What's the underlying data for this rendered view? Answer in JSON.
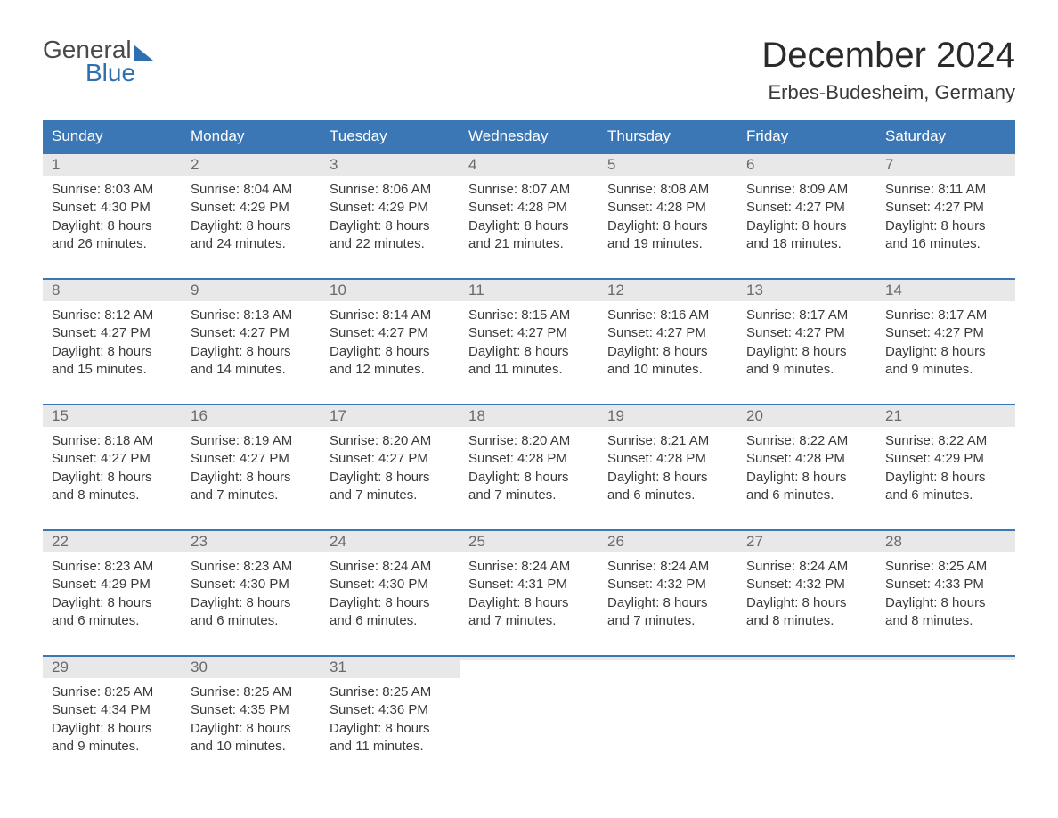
{
  "logo": {
    "text1": "General",
    "text2": "Blue"
  },
  "title": "December 2024",
  "location": "Erbes-Budesheim, Germany",
  "colors": {
    "header_bg": "#3b76b5",
    "header_text": "#ffffff",
    "daynum_bg": "#e8e8e8",
    "daynum_text": "#6a6a6a",
    "body_text": "#3a3a3a",
    "accent": "#2d6fb0",
    "week_border": "#3b76b5",
    "background": "#ffffff"
  },
  "fonts": {
    "title_size": 40,
    "location_size": 22,
    "header_size": 17,
    "daynum_size": 17,
    "body_size": 15
  },
  "day_names": [
    "Sunday",
    "Monday",
    "Tuesday",
    "Wednesday",
    "Thursday",
    "Friday",
    "Saturday"
  ],
  "weeks": [
    [
      {
        "n": "1",
        "sr": "8:03 AM",
        "ss": "4:30 PM",
        "dl": "8 hours and 26 minutes."
      },
      {
        "n": "2",
        "sr": "8:04 AM",
        "ss": "4:29 PM",
        "dl": "8 hours and 24 minutes."
      },
      {
        "n": "3",
        "sr": "8:06 AM",
        "ss": "4:29 PM",
        "dl": "8 hours and 22 minutes."
      },
      {
        "n": "4",
        "sr": "8:07 AM",
        "ss": "4:28 PM",
        "dl": "8 hours and 21 minutes."
      },
      {
        "n": "5",
        "sr": "8:08 AM",
        "ss": "4:28 PM",
        "dl": "8 hours and 19 minutes."
      },
      {
        "n": "6",
        "sr": "8:09 AM",
        "ss": "4:27 PM",
        "dl": "8 hours and 18 minutes."
      },
      {
        "n": "7",
        "sr": "8:11 AM",
        "ss": "4:27 PM",
        "dl": "8 hours and 16 minutes."
      }
    ],
    [
      {
        "n": "8",
        "sr": "8:12 AM",
        "ss": "4:27 PM",
        "dl": "8 hours and 15 minutes."
      },
      {
        "n": "9",
        "sr": "8:13 AM",
        "ss": "4:27 PM",
        "dl": "8 hours and 14 minutes."
      },
      {
        "n": "10",
        "sr": "8:14 AM",
        "ss": "4:27 PM",
        "dl": "8 hours and 12 minutes."
      },
      {
        "n": "11",
        "sr": "8:15 AM",
        "ss": "4:27 PM",
        "dl": "8 hours and 11 minutes."
      },
      {
        "n": "12",
        "sr": "8:16 AM",
        "ss": "4:27 PM",
        "dl": "8 hours and 10 minutes."
      },
      {
        "n": "13",
        "sr": "8:17 AM",
        "ss": "4:27 PM",
        "dl": "8 hours and 9 minutes."
      },
      {
        "n": "14",
        "sr": "8:17 AM",
        "ss": "4:27 PM",
        "dl": "8 hours and 9 minutes."
      }
    ],
    [
      {
        "n": "15",
        "sr": "8:18 AM",
        "ss": "4:27 PM",
        "dl": "8 hours and 8 minutes."
      },
      {
        "n": "16",
        "sr": "8:19 AM",
        "ss": "4:27 PM",
        "dl": "8 hours and 7 minutes."
      },
      {
        "n": "17",
        "sr": "8:20 AM",
        "ss": "4:27 PM",
        "dl": "8 hours and 7 minutes."
      },
      {
        "n": "18",
        "sr": "8:20 AM",
        "ss": "4:28 PM",
        "dl": "8 hours and 7 minutes."
      },
      {
        "n": "19",
        "sr": "8:21 AM",
        "ss": "4:28 PM",
        "dl": "8 hours and 6 minutes."
      },
      {
        "n": "20",
        "sr": "8:22 AM",
        "ss": "4:28 PM",
        "dl": "8 hours and 6 minutes."
      },
      {
        "n": "21",
        "sr": "8:22 AM",
        "ss": "4:29 PM",
        "dl": "8 hours and 6 minutes."
      }
    ],
    [
      {
        "n": "22",
        "sr": "8:23 AM",
        "ss": "4:29 PM",
        "dl": "8 hours and 6 minutes."
      },
      {
        "n": "23",
        "sr": "8:23 AM",
        "ss": "4:30 PM",
        "dl": "8 hours and 6 minutes."
      },
      {
        "n": "24",
        "sr": "8:24 AM",
        "ss": "4:30 PM",
        "dl": "8 hours and 6 minutes."
      },
      {
        "n": "25",
        "sr": "8:24 AM",
        "ss": "4:31 PM",
        "dl": "8 hours and 7 minutes."
      },
      {
        "n": "26",
        "sr": "8:24 AM",
        "ss": "4:32 PM",
        "dl": "8 hours and 7 minutes."
      },
      {
        "n": "27",
        "sr": "8:24 AM",
        "ss": "4:32 PM",
        "dl": "8 hours and 8 minutes."
      },
      {
        "n": "28",
        "sr": "8:25 AM",
        "ss": "4:33 PM",
        "dl": "8 hours and 8 minutes."
      }
    ],
    [
      {
        "n": "29",
        "sr": "8:25 AM",
        "ss": "4:34 PM",
        "dl": "8 hours and 9 minutes."
      },
      {
        "n": "30",
        "sr": "8:25 AM",
        "ss": "4:35 PM",
        "dl": "8 hours and 10 minutes."
      },
      {
        "n": "31",
        "sr": "8:25 AM",
        "ss": "4:36 PM",
        "dl": "8 hours and 11 minutes."
      },
      null,
      null,
      null,
      null
    ]
  ],
  "labels": {
    "sunrise": "Sunrise:",
    "sunset": "Sunset:",
    "daylight": "Daylight:"
  }
}
